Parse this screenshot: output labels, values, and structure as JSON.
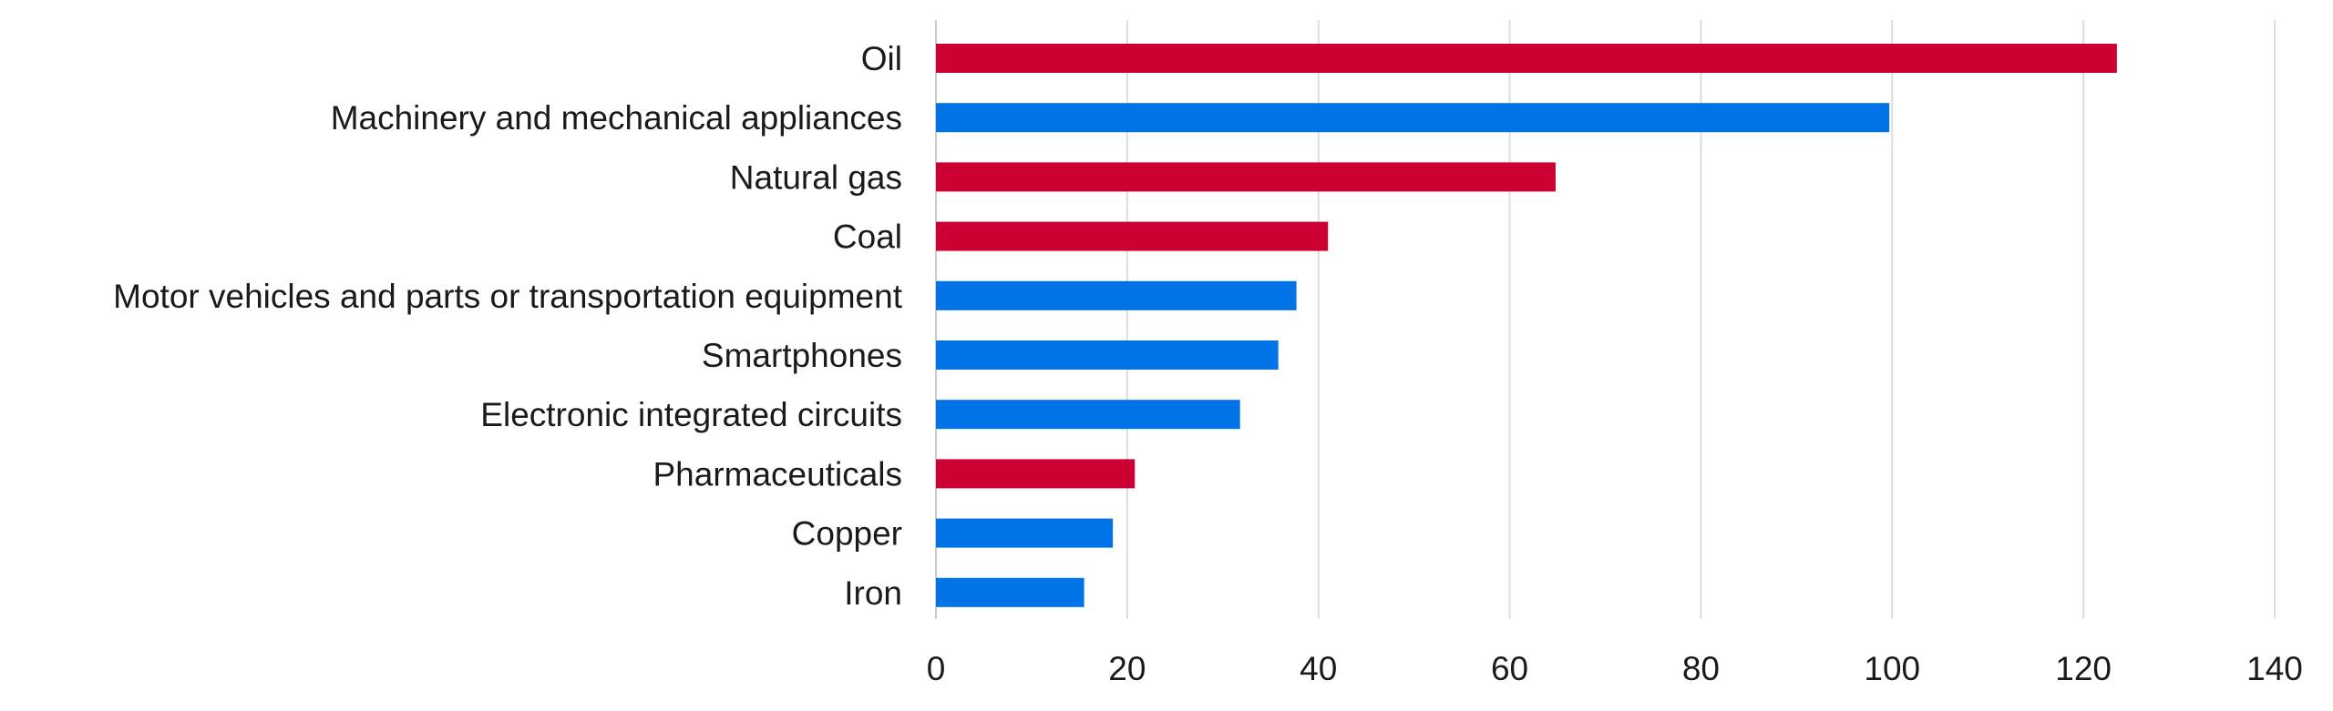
{
  "chart_data": {
    "type": "bar",
    "orientation": "horizontal",
    "title": "",
    "xlabel": "",
    "ylabel": "",
    "categories": [
      "Oil",
      "Machinery and mechanical appliances",
      "Natural gas",
      "Coal",
      "Motor vehicles and parts or transportation equipment",
      "Smartphones",
      "Electronic integrated circuits",
      "Pharmaceuticals",
      "Copper",
      "Iron"
    ],
    "values": [
      123.5,
      99.7,
      64.8,
      41.0,
      37.7,
      35.8,
      31.8,
      20.8,
      18.5,
      15.5
    ],
    "bar_colors": [
      "#cc0033",
      "#0073e6",
      "#cc0033",
      "#cc0033",
      "#0073e6",
      "#0073e6",
      "#0073e6",
      "#cc0033",
      "#0073e6",
      "#0073e6"
    ],
    "xlim": [
      0,
      140
    ],
    "x_ticks": [
      0,
      20,
      40,
      60,
      80,
      100,
      120,
      140
    ],
    "grid": "vertical",
    "gridline_color": "#dddddd",
    "legend": "none"
  }
}
